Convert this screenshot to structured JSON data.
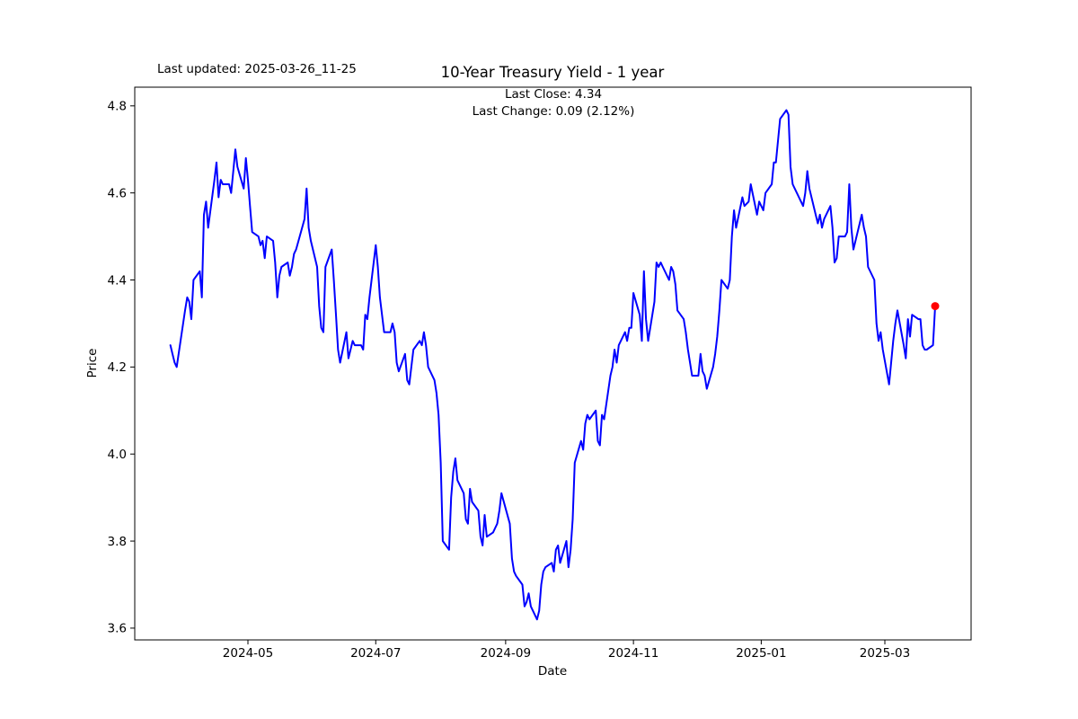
{
  "figure": {
    "title": "10-Year Treasury Yield - 1 year",
    "last_updated": "Last updated: 2025-03-26_11-25",
    "annotation_line1": "Last Close: 4.34",
    "annotation_line2": "Last Change: 0.09 (2.12%)",
    "xlabel": "Date",
    "ylabel": "Price"
  },
  "chart_data": {
    "type": "line",
    "title": "10-Year Treasury Yield - 1 year",
    "xlabel": "Date",
    "ylabel": "Price",
    "grid": false,
    "legend": "none",
    "line_color": "#0000ff",
    "marker_color": "#ff0000",
    "frame_color": "#000000",
    "last_close": 4.34,
    "last_change": 0.09,
    "last_change_pct": "2.12%",
    "ylim": [
      3.57,
      4.84
    ],
    "xlim": [
      "2024-03-08",
      "2025-04-11"
    ],
    "yticks": [
      {
        "value": 3.6,
        "label": "3.6"
      },
      {
        "value": 3.8,
        "label": "3.8"
      },
      {
        "value": 4.0,
        "label": "4.0"
      },
      {
        "value": 4.2,
        "label": "4.2"
      },
      {
        "value": 4.4,
        "label": "4.4"
      },
      {
        "value": 4.6,
        "label": "4.6"
      },
      {
        "value": 4.8,
        "label": "4.8"
      }
    ],
    "xticks": [
      {
        "date": "2024-05-01",
        "label": "2024-05"
      },
      {
        "date": "2024-07-01",
        "label": "2024-07"
      },
      {
        "date": "2024-09-01",
        "label": "2024-09"
      },
      {
        "date": "2024-11-01",
        "label": "2024-11"
      },
      {
        "date": "2025-01-01",
        "label": "2025-01"
      },
      {
        "date": "2025-03-01",
        "label": "2025-03"
      }
    ],
    "series": [
      {
        "name": "10-Year Treasury Yield",
        "points": [
          [
            "2024-03-25",
            4.25
          ],
          [
            "2024-03-26",
            4.23
          ],
          [
            "2024-03-27",
            4.21
          ],
          [
            "2024-03-28",
            4.2
          ],
          [
            "2024-04-01",
            4.33
          ],
          [
            "2024-04-02",
            4.36
          ],
          [
            "2024-04-03",
            4.35
          ],
          [
            "2024-04-04",
            4.31
          ],
          [
            "2024-04-05",
            4.4
          ],
          [
            "2024-04-08",
            4.42
          ],
          [
            "2024-04-09",
            4.36
          ],
          [
            "2024-04-10",
            4.55
          ],
          [
            "2024-04-11",
            4.58
          ],
          [
            "2024-04-12",
            4.52
          ],
          [
            "2024-04-15",
            4.63
          ],
          [
            "2024-04-16",
            4.67
          ],
          [
            "2024-04-17",
            4.59
          ],
          [
            "2024-04-18",
            4.63
          ],
          [
            "2024-04-19",
            4.62
          ],
          [
            "2024-04-22",
            4.62
          ],
          [
            "2024-04-23",
            4.6
          ],
          [
            "2024-04-24",
            4.65
          ],
          [
            "2024-04-25",
            4.7
          ],
          [
            "2024-04-26",
            4.66
          ],
          [
            "2024-04-29",
            4.61
          ],
          [
            "2024-04-30",
            4.68
          ],
          [
            "2024-05-01",
            4.63
          ],
          [
            "2024-05-02",
            4.57
          ],
          [
            "2024-05-03",
            4.51
          ],
          [
            "2024-05-06",
            4.5
          ],
          [
            "2024-05-07",
            4.48
          ],
          [
            "2024-05-08",
            4.49
          ],
          [
            "2024-05-09",
            4.45
          ],
          [
            "2024-05-10",
            4.5
          ],
          [
            "2024-05-13",
            4.49
          ],
          [
            "2024-05-14",
            4.44
          ],
          [
            "2024-05-15",
            4.36
          ],
          [
            "2024-05-16",
            4.41
          ],
          [
            "2024-05-17",
            4.43
          ],
          [
            "2024-05-20",
            4.44
          ],
          [
            "2024-05-21",
            4.41
          ],
          [
            "2024-05-22",
            4.43
          ],
          [
            "2024-05-23",
            4.46
          ],
          [
            "2024-05-24",
            4.47
          ],
          [
            "2024-05-28",
            4.54
          ],
          [
            "2024-05-29",
            4.61
          ],
          [
            "2024-05-30",
            4.52
          ],
          [
            "2024-05-31",
            4.49
          ],
          [
            "2024-06-03",
            4.43
          ],
          [
            "2024-06-04",
            4.34
          ],
          [
            "2024-06-05",
            4.29
          ],
          [
            "2024-06-06",
            4.28
          ],
          [
            "2024-06-07",
            4.43
          ],
          [
            "2024-06-10",
            4.47
          ],
          [
            "2024-06-11",
            4.4
          ],
          [
            "2024-06-12",
            4.32
          ],
          [
            "2024-06-13",
            4.24
          ],
          [
            "2024-06-14",
            4.21
          ],
          [
            "2024-06-17",
            4.28
          ],
          [
            "2024-06-18",
            4.22
          ],
          [
            "2024-06-20",
            4.26
          ],
          [
            "2024-06-21",
            4.25
          ],
          [
            "2024-06-24",
            4.25
          ],
          [
            "2024-06-25",
            4.24
          ],
          [
            "2024-06-26",
            4.32
          ],
          [
            "2024-06-27",
            4.31
          ],
          [
            "2024-06-28",
            4.36
          ],
          [
            "2024-07-01",
            4.48
          ],
          [
            "2024-07-02",
            4.43
          ],
          [
            "2024-07-03",
            4.36
          ],
          [
            "2024-07-05",
            4.28
          ],
          [
            "2024-07-08",
            4.28
          ],
          [
            "2024-07-09",
            4.3
          ],
          [
            "2024-07-10",
            4.28
          ],
          [
            "2024-07-11",
            4.21
          ],
          [
            "2024-07-12",
            4.19
          ],
          [
            "2024-07-15",
            4.23
          ],
          [
            "2024-07-16",
            4.17
          ],
          [
            "2024-07-17",
            4.16
          ],
          [
            "2024-07-18",
            4.2
          ],
          [
            "2024-07-19",
            4.24
          ],
          [
            "2024-07-22",
            4.26
          ],
          [
            "2024-07-23",
            4.25
          ],
          [
            "2024-07-24",
            4.28
          ],
          [
            "2024-07-25",
            4.25
          ],
          [
            "2024-07-26",
            4.2
          ],
          [
            "2024-07-29",
            4.17
          ],
          [
            "2024-07-30",
            4.14
          ],
          [
            "2024-07-31",
            4.09
          ],
          [
            "2024-08-01",
            3.98
          ],
          [
            "2024-08-02",
            3.8
          ],
          [
            "2024-08-05",
            3.78
          ],
          [
            "2024-08-06",
            3.9
          ],
          [
            "2024-08-07",
            3.96
          ],
          [
            "2024-08-08",
            3.99
          ],
          [
            "2024-08-09",
            3.94
          ],
          [
            "2024-08-12",
            3.91
          ],
          [
            "2024-08-13",
            3.85
          ],
          [
            "2024-08-14",
            3.84
          ],
          [
            "2024-08-15",
            3.92
          ],
          [
            "2024-08-16",
            3.89
          ],
          [
            "2024-08-19",
            3.87
          ],
          [
            "2024-08-20",
            3.81
          ],
          [
            "2024-08-21",
            3.79
          ],
          [
            "2024-08-22",
            3.86
          ],
          [
            "2024-08-23",
            3.81
          ],
          [
            "2024-08-26",
            3.82
          ],
          [
            "2024-08-27",
            3.83
          ],
          [
            "2024-08-28",
            3.84
          ],
          [
            "2024-08-29",
            3.87
          ],
          [
            "2024-08-30",
            3.91
          ],
          [
            "2024-09-03",
            3.84
          ],
          [
            "2024-09-04",
            3.76
          ],
          [
            "2024-09-05",
            3.73
          ],
          [
            "2024-09-06",
            3.72
          ],
          [
            "2024-09-09",
            3.7
          ],
          [
            "2024-09-10",
            3.65
          ],
          [
            "2024-09-11",
            3.66
          ],
          [
            "2024-09-12",
            3.68
          ],
          [
            "2024-09-13",
            3.65
          ],
          [
            "2024-09-16",
            3.62
          ],
          [
            "2024-09-17",
            3.64
          ],
          [
            "2024-09-18",
            3.7
          ],
          [
            "2024-09-19",
            3.73
          ],
          [
            "2024-09-20",
            3.74
          ],
          [
            "2024-09-23",
            3.75
          ],
          [
            "2024-09-24",
            3.73
          ],
          [
            "2024-09-25",
            3.78
          ],
          [
            "2024-09-26",
            3.79
          ],
          [
            "2024-09-27",
            3.75
          ],
          [
            "2024-09-30",
            3.8
          ],
          [
            "2024-10-01",
            3.74
          ],
          [
            "2024-10-02",
            3.78
          ],
          [
            "2024-10-03",
            3.85
          ],
          [
            "2024-10-04",
            3.98
          ],
          [
            "2024-10-07",
            4.03
          ],
          [
            "2024-10-08",
            4.01
          ],
          [
            "2024-10-09",
            4.07
          ],
          [
            "2024-10-10",
            4.09
          ],
          [
            "2024-10-11",
            4.08
          ],
          [
            "2024-10-14",
            4.1
          ],
          [
            "2024-10-15",
            4.03
          ],
          [
            "2024-10-16",
            4.02
          ],
          [
            "2024-10-17",
            4.09
          ],
          [
            "2024-10-18",
            4.08
          ],
          [
            "2024-10-21",
            4.18
          ],
          [
            "2024-10-22",
            4.2
          ],
          [
            "2024-10-23",
            4.24
          ],
          [
            "2024-10-24",
            4.21
          ],
          [
            "2024-10-25",
            4.25
          ],
          [
            "2024-10-28",
            4.28
          ],
          [
            "2024-10-29",
            4.26
          ],
          [
            "2024-10-30",
            4.29
          ],
          [
            "2024-10-31",
            4.29
          ],
          [
            "2024-11-01",
            4.37
          ],
          [
            "2024-11-04",
            4.32
          ],
          [
            "2024-11-05",
            4.26
          ],
          [
            "2024-11-06",
            4.42
          ],
          [
            "2024-11-07",
            4.31
          ],
          [
            "2024-11-08",
            4.26
          ],
          [
            "2024-11-11",
            4.35
          ],
          [
            "2024-11-12",
            4.44
          ],
          [
            "2024-11-13",
            4.43
          ],
          [
            "2024-11-14",
            4.44
          ],
          [
            "2024-11-15",
            4.43
          ],
          [
            "2024-11-18",
            4.4
          ],
          [
            "2024-11-19",
            4.43
          ],
          [
            "2024-11-20",
            4.42
          ],
          [
            "2024-11-21",
            4.39
          ],
          [
            "2024-11-22",
            4.33
          ],
          [
            "2024-11-25",
            4.31
          ],
          [
            "2024-11-26",
            4.28
          ],
          [
            "2024-11-27",
            4.24
          ],
          [
            "2024-11-29",
            4.18
          ],
          [
            "2024-12-02",
            4.18
          ],
          [
            "2024-12-03",
            4.23
          ],
          [
            "2024-12-04",
            4.19
          ],
          [
            "2024-12-05",
            4.18
          ],
          [
            "2024-12-06",
            4.15
          ],
          [
            "2024-12-09",
            4.2
          ],
          [
            "2024-12-10",
            4.23
          ],
          [
            "2024-12-11",
            4.27
          ],
          [
            "2024-12-12",
            4.33
          ],
          [
            "2024-12-13",
            4.4
          ],
          [
            "2024-12-16",
            4.38
          ],
          [
            "2024-12-17",
            4.4
          ],
          [
            "2024-12-18",
            4.5
          ],
          [
            "2024-12-19",
            4.56
          ],
          [
            "2024-12-20",
            4.52
          ],
          [
            "2024-12-23",
            4.59
          ],
          [
            "2024-12-24",
            4.57
          ],
          [
            "2024-12-26",
            4.58
          ],
          [
            "2024-12-27",
            4.62
          ],
          [
            "2024-12-30",
            4.55
          ],
          [
            "2024-12-31",
            4.58
          ],
          [
            "2025-01-02",
            4.56
          ],
          [
            "2025-01-03",
            4.6
          ],
          [
            "2025-01-06",
            4.62
          ],
          [
            "2025-01-07",
            4.67
          ],
          [
            "2025-01-08",
            4.67
          ],
          [
            "2025-01-10",
            4.77
          ],
          [
            "2025-01-13",
            4.79
          ],
          [
            "2025-01-14",
            4.78
          ],
          [
            "2025-01-15",
            4.66
          ],
          [
            "2025-01-16",
            4.62
          ],
          [
            "2025-01-17",
            4.61
          ],
          [
            "2025-01-21",
            4.57
          ],
          [
            "2025-01-22",
            4.6
          ],
          [
            "2025-01-23",
            4.65
          ],
          [
            "2025-01-24",
            4.61
          ],
          [
            "2025-01-27",
            4.55
          ],
          [
            "2025-01-28",
            4.53
          ],
          [
            "2025-01-29",
            4.55
          ],
          [
            "2025-01-30",
            4.52
          ],
          [
            "2025-01-31",
            4.54
          ],
          [
            "2025-02-03",
            4.57
          ],
          [
            "2025-02-04",
            4.52
          ],
          [
            "2025-02-05",
            4.44
          ],
          [
            "2025-02-06",
            4.45
          ],
          [
            "2025-02-07",
            4.5
          ],
          [
            "2025-02-10",
            4.5
          ],
          [
            "2025-02-11",
            4.51
          ],
          [
            "2025-02-12",
            4.62
          ],
          [
            "2025-02-13",
            4.52
          ],
          [
            "2025-02-14",
            4.47
          ],
          [
            "2025-02-18",
            4.55
          ],
          [
            "2025-02-19",
            4.52
          ],
          [
            "2025-02-20",
            4.5
          ],
          [
            "2025-02-21",
            4.43
          ],
          [
            "2025-02-24",
            4.4
          ],
          [
            "2025-02-25",
            4.3
          ],
          [
            "2025-02-26",
            4.26
          ],
          [
            "2025-02-27",
            4.28
          ],
          [
            "2025-02-28",
            4.24
          ],
          [
            "2025-03-03",
            4.16
          ],
          [
            "2025-03-04",
            4.21
          ],
          [
            "2025-03-05",
            4.26
          ],
          [
            "2025-03-06",
            4.3
          ],
          [
            "2025-03-07",
            4.33
          ],
          [
            "2025-03-10",
            4.25
          ],
          [
            "2025-03-11",
            4.22
          ],
          [
            "2025-03-12",
            4.31
          ],
          [
            "2025-03-13",
            4.27
          ],
          [
            "2025-03-14",
            4.32
          ],
          [
            "2025-03-17",
            4.31
          ],
          [
            "2025-03-18",
            4.31
          ],
          [
            "2025-03-19",
            4.25
          ],
          [
            "2025-03-20",
            4.24
          ],
          [
            "2025-03-21",
            4.24
          ],
          [
            "2025-03-24",
            4.25
          ],
          [
            "2025-03-25",
            4.34
          ]
        ]
      }
    ]
  }
}
